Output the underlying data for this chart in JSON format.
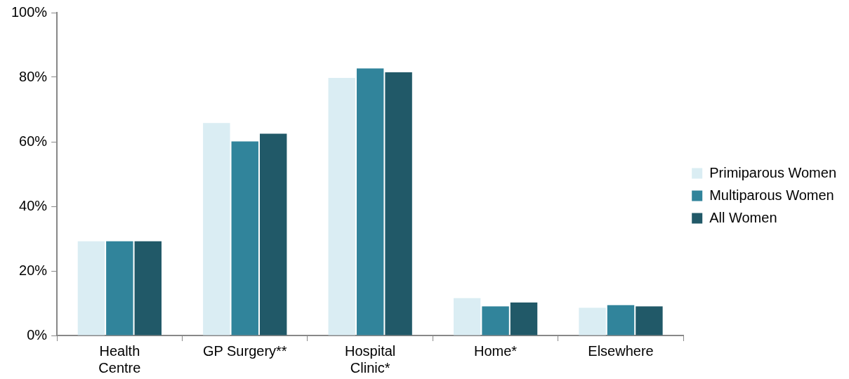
{
  "chart_data": {
    "type": "bar",
    "categories": [
      "Health Centre",
      "GP Surgery**",
      "Hospital Clinic*",
      "Home*",
      "Elsewhere"
    ],
    "series": [
      {
        "name": "Primiparous Women",
        "color": "#daedf3",
        "values": [
          29.2,
          65.8,
          79.8,
          11.6,
          8.6
        ]
      },
      {
        "name": "Multiparous Women",
        "color": "#31849b",
        "values": [
          29.2,
          60.1,
          82.7,
          9.0,
          9.4
        ]
      },
      {
        "name": "All Women",
        "color": "#215968",
        "values": [
          29.2,
          62.5,
          81.5,
          10.2,
          9.0
        ]
      }
    ],
    "ylim": [
      0,
      100
    ],
    "yticks": [
      {
        "value": 0,
        "label": "0%"
      },
      {
        "value": 20,
        "label": "20%"
      },
      {
        "value": 40,
        "label": "40%"
      },
      {
        "value": 60,
        "label": "60%"
      },
      {
        "value": 80,
        "label": "80%"
      },
      {
        "value": 100,
        "label": "100%"
      }
    ],
    "grid": false,
    "legend": "right"
  }
}
